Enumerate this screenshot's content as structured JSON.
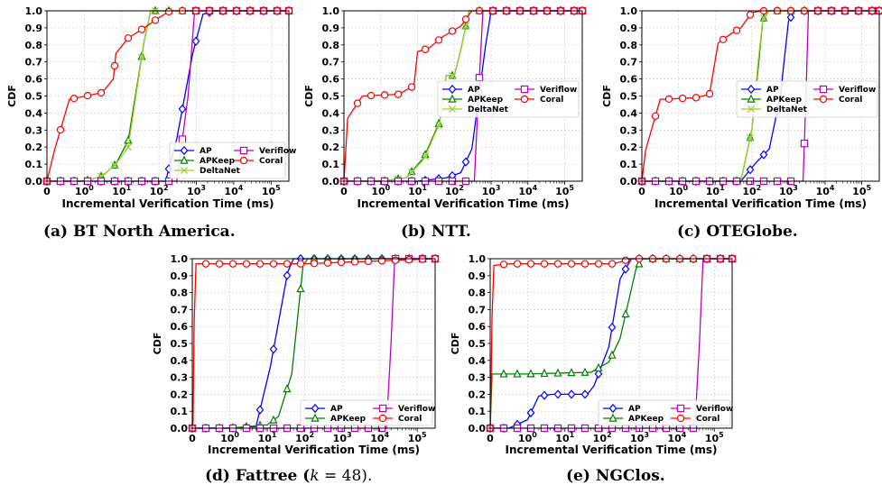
{
  "colors": {
    "AP": "#0000ff",
    "APKeep": "#008000",
    "DeltaNet": "#9acd32",
    "Veriflow": "#bf00bf",
    "Coral": "#ff0000"
  },
  "chart_data": [
    {
      "type": "line",
      "caption": "(a)  BT North America.",
      "xlabel": "Incremental Verification Time (ms)",
      "ylabel": "CDF",
      "xscale": "symlog",
      "xlim": [
        0,
        300000
      ],
      "ylim": [
        0,
        1
      ],
      "yticks": [
        "0.0",
        "0.1",
        "0.2",
        "0.3",
        "0.4",
        "0.5",
        "0.6",
        "0.7",
        "0.8",
        "0.9",
        "1.0"
      ],
      "grid": true,
      "legend": "lower-right",
      "series": [
        {
          "name": "AP",
          "marker": "diamond",
          "points": [
            [
              0,
              0
            ],
            [
              1,
              0
            ],
            [
              5,
              0
            ],
            [
              10,
              0
            ],
            [
              50,
              0
            ],
            [
              150,
              0
            ],
            [
              300,
              0.25
            ],
            [
              800,
              0.75
            ],
            [
              1500,
              0.98
            ],
            [
              3000,
              1
            ],
            [
              300000,
              1
            ]
          ]
        },
        {
          "name": "APKeep",
          "marker": "triangle",
          "points": [
            [
              0,
              0
            ],
            [
              1,
              0
            ],
            [
              3,
              0.03
            ],
            [
              7,
              0.1
            ],
            [
              15,
              0.24
            ],
            [
              40,
              0.82
            ],
            [
              60,
              1
            ],
            [
              300000,
              1
            ]
          ]
        },
        {
          "name": "DeltaNet",
          "marker": "x",
          "points": [
            [
              0,
              0
            ],
            [
              1,
              0
            ],
            [
              3,
              0.03
            ],
            [
              7,
              0.1
            ],
            [
              15,
              0.2
            ],
            [
              40,
              0.82
            ],
            [
              60,
              1
            ],
            [
              300000,
              1
            ]
          ]
        },
        {
          "name": "Veriflow",
          "marker": "square",
          "points": [
            [
              0,
              0
            ],
            [
              300,
              0
            ],
            [
              600,
              0.5
            ],
            [
              900,
              1
            ],
            [
              300000,
              1
            ]
          ]
        },
        {
          "name": "Coral",
          "marker": "circle",
          "points": [
            [
              0,
              0
            ],
            [
              0.2,
              0.18
            ],
            [
              0.6,
              0.48
            ],
            [
              3,
              0.52
            ],
            [
              6,
              0.6
            ],
            [
              7,
              0.75
            ],
            [
              15,
              0.84
            ],
            [
              40,
              0.9
            ],
            [
              100,
              0.96
            ],
            [
              200,
              1
            ],
            [
              300000,
              1
            ]
          ]
        }
      ]
    },
    {
      "type": "line",
      "caption": "(b)  NTT.",
      "xlabel": "Incremental Verification Time (ms)",
      "ylabel": "CDF",
      "xscale": "symlog",
      "xlim": [
        0,
        300000
      ],
      "ylim": [
        0,
        1
      ],
      "yticks": [
        "0.0",
        "0.1",
        "0.2",
        "0.3",
        "0.4",
        "0.5",
        "0.6",
        "0.7",
        "0.8",
        "0.9",
        "1.0"
      ],
      "grid": true,
      "legend": "center-right",
      "series": [
        {
          "name": "AP",
          "marker": "diamond",
          "points": [
            [
              0,
              0
            ],
            [
              1,
              0
            ],
            [
              10,
              0
            ],
            [
              60,
              0.02
            ],
            [
              150,
              0.05
            ],
            [
              300,
              0.19
            ],
            [
              700,
              0.79
            ],
            [
              1000,
              1
            ],
            [
              300000,
              1
            ]
          ]
        },
        {
          "name": "APKeep",
          "marker": "triangle",
          "points": [
            [
              0,
              0
            ],
            [
              1,
              0
            ],
            [
              5,
              0.02
            ],
            [
              15,
              0.14
            ],
            [
              40,
              0.35
            ],
            [
              60,
              0.62
            ],
            [
              100,
              0.62
            ],
            [
              150,
              0.77
            ],
            [
              250,
              1
            ],
            [
              300000,
              1
            ]
          ]
        },
        {
          "name": "DeltaNet",
          "marker": "x",
          "points": [
            [
              0,
              0
            ],
            [
              1,
              0
            ],
            [
              5,
              0.02
            ],
            [
              15,
              0.13
            ],
            [
              40,
              0.34
            ],
            [
              60,
              0.62
            ],
            [
              100,
              0.62
            ],
            [
              150,
              0.77
            ],
            [
              250,
              1
            ],
            [
              300000,
              1
            ]
          ]
        },
        {
          "name": "Veriflow",
          "marker": "square",
          "points": [
            [
              0,
              0
            ],
            [
              350,
              0
            ],
            [
              450,
              0.5
            ],
            [
              600,
              1
            ],
            [
              300000,
              1
            ]
          ]
        },
        {
          "name": "Coral",
          "marker": "circle",
          "points": [
            [
              0,
              0
            ],
            [
              0.1,
              0.37
            ],
            [
              0.5,
              0.5
            ],
            [
              3,
              0.51
            ],
            [
              8,
              0.56
            ],
            [
              10,
              0.76
            ],
            [
              20,
              0.78
            ],
            [
              50,
              0.85
            ],
            [
              150,
              0.91
            ],
            [
              300,
              1
            ],
            [
              300000,
              1
            ]
          ]
        }
      ]
    },
    {
      "type": "line",
      "caption": "(c)  OTEGlobe.",
      "xlabel": "Incremental Verification Time (ms)",
      "ylabel": "CDF",
      "xscale": "symlog",
      "xlim": [
        0,
        300000
      ],
      "ylim": [
        0,
        1
      ],
      "yticks": [
        "0.0",
        "0.1",
        "0.2",
        "0.3",
        "0.4",
        "0.5",
        "0.6",
        "0.7",
        "0.8",
        "0.9",
        "1.0"
      ],
      "grid": true,
      "legend": "center-right",
      "series": [
        {
          "name": "AP",
          "marker": "diamond",
          "points": [
            [
              0,
              0
            ],
            [
              1,
              0
            ],
            [
              50,
              0
            ],
            [
              120,
              0.1
            ],
            [
              300,
              0.19
            ],
            [
              600,
              0.5
            ],
            [
              1000,
              0.94
            ],
            [
              1500,
              1
            ],
            [
              300000,
              1
            ]
          ]
        },
        {
          "name": "APKeep",
          "marker": "triangle",
          "points": [
            [
              0,
              0
            ],
            [
              1,
              0
            ],
            [
              50,
              0
            ],
            [
              100,
              0.3
            ],
            [
              150,
              0.67
            ],
            [
              200,
              0.95
            ],
            [
              300,
              1
            ],
            [
              300000,
              1
            ]
          ]
        },
        {
          "name": "DeltaNet",
          "marker": "x",
          "points": [
            [
              0,
              0
            ],
            [
              1,
              0
            ],
            [
              50,
              0
            ],
            [
              100,
              0.3
            ],
            [
              150,
              0.71
            ],
            [
              200,
              0.95
            ],
            [
              300,
              1
            ],
            [
              300000,
              1
            ]
          ]
        },
        {
          "name": "Veriflow",
          "marker": "square",
          "points": [
            [
              0,
              0
            ],
            [
              2500,
              0
            ],
            [
              3000,
              0.5
            ],
            [
              3500,
              1
            ],
            [
              300000,
              1
            ]
          ]
        },
        {
          "name": "Coral",
          "marker": "circle",
          "points": [
            [
              0,
              0
            ],
            [
              0.1,
              0.18
            ],
            [
              0.5,
              0.48
            ],
            [
              3,
              0.49
            ],
            [
              7,
              0.51
            ],
            [
              12,
              0.81
            ],
            [
              25,
              0.86
            ],
            [
              50,
              0.9
            ],
            [
              100,
              0.99
            ],
            [
              200,
              1
            ],
            [
              300000,
              1
            ]
          ]
        }
      ]
    },
    {
      "type": "line",
      "caption": "(d)  Fattree (",
      "caption_k": "k",
      "caption_tail": " = 48).",
      "xlabel": "Incremental Verification Time (ms)",
      "ylabel": "CDF",
      "xscale": "symlog",
      "xlim": [
        0,
        300000
      ],
      "ylim": [
        0,
        1
      ],
      "yticks": [
        "0.0",
        "0.1",
        "0.2",
        "0.3",
        "0.4",
        "0.5",
        "0.6",
        "0.7",
        "0.8",
        "0.9",
        "1.0"
      ],
      "grid": true,
      "legend": "lower-right",
      "series": [
        {
          "name": "AP",
          "marker": "diamond",
          "points": [
            [
              0,
              0
            ],
            [
              1,
              0
            ],
            [
              5,
              0.01
            ],
            [
              12,
              0.36
            ],
            [
              35,
              0.92
            ],
            [
              50,
              1
            ],
            [
              300000,
              1
            ]
          ]
        },
        {
          "name": "APKeep",
          "marker": "triangle",
          "points": [
            [
              0,
              0
            ],
            [
              1,
              0
            ],
            [
              10,
              0.02
            ],
            [
              20,
              0.07
            ],
            [
              45,
              0.32
            ],
            [
              90,
              0.96
            ],
            [
              120,
              1
            ],
            [
              300000,
              1
            ]
          ]
        },
        {
          "name": "Veriflow",
          "marker": "square",
          "points": [
            [
              0,
              0
            ],
            [
              15000,
              0
            ],
            [
              20000,
              0.5
            ],
            [
              25000,
              1
            ],
            [
              300000,
              1
            ]
          ]
        },
        {
          "name": "Coral",
          "marker": "circle",
          "points": [
            [
              0,
              0
            ],
            [
              0.02,
              0.04
            ],
            [
              0.05,
              0.63
            ],
            [
              0.1,
              0.97
            ],
            [
              1,
              0.97
            ],
            [
              30,
              0.97
            ],
            [
              100,
              0.97
            ],
            [
              300000,
              1
            ]
          ]
        }
      ]
    },
    {
      "type": "line",
      "caption": "(e)  NGClos.",
      "xlabel": "Incremental Verification Time (ms)",
      "ylabel": "CDF",
      "xscale": "symlog",
      "xlim": [
        0,
        300000
      ],
      "ylim": [
        0,
        1
      ],
      "yticks": [
        "0.0",
        "0.1",
        "0.2",
        "0.3",
        "0.4",
        "0.5",
        "0.6",
        "0.7",
        "0.8",
        "0.9",
        "1.0"
      ],
      "grid": true,
      "legend": "lower-right",
      "series": [
        {
          "name": "AP",
          "marker": "diamond",
          "points": [
            [
              0,
              0
            ],
            [
              0.5,
              0
            ],
            [
              1,
              0.05
            ],
            [
              2,
              0.19
            ],
            [
              5,
              0.2
            ],
            [
              40,
              0.2
            ],
            [
              60,
              0.25
            ],
            [
              150,
              0.48
            ],
            [
              300,
              0.88
            ],
            [
              600,
              1
            ],
            [
              300000,
              1
            ]
          ]
        },
        {
          "name": "APKeep",
          "marker": "triangle",
          "points": [
            [
              0,
              0
            ],
            [
              0.05,
              0.32
            ],
            [
              1,
              0.32
            ],
            [
              50,
              0.33
            ],
            [
              150,
              0.39
            ],
            [
              300,
              0.53
            ],
            [
              800,
              0.94
            ],
            [
              1200,
              1
            ],
            [
              300000,
              1
            ]
          ]
        },
        {
          "name": "Veriflow",
          "marker": "square",
          "points": [
            [
              0,
              0
            ],
            [
              30000,
              0
            ],
            [
              40000,
              0.5
            ],
            [
              50000,
              1
            ],
            [
              300000,
              1
            ]
          ]
        },
        {
          "name": "Coral",
          "marker": "circle",
          "points": [
            [
              0,
              0
            ],
            [
              0.02,
              0.2
            ],
            [
              0.05,
              0.66
            ],
            [
              0.1,
              0.96
            ],
            [
              0.5,
              0.97
            ],
            [
              30,
              0.97
            ],
            [
              200,
              0.97
            ],
            [
              600,
              1
            ],
            [
              300000,
              1
            ]
          ]
        }
      ]
    }
  ]
}
